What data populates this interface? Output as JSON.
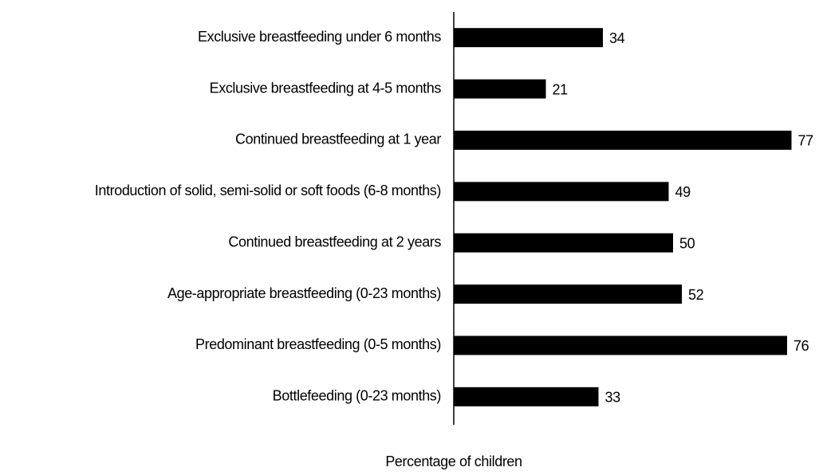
{
  "chart_data": {
    "type": "bar",
    "orientation": "horizontal",
    "categories": [
      "Exclusive breastfeeding under 6 months",
      "Exclusive breastfeeding at 4-5 months",
      "Continued breastfeeding at 1 year",
      "Introduction of solid, semi-solid or soft foods (6-8 months)",
      "Continued breastfeeding at 2 years",
      "Age-appropriate breastfeeding (0-23 months)",
      "Predominant breastfeeding (0-5 months)",
      "Bottlefeeding (0-23 months)"
    ],
    "values": [
      34,
      21,
      77,
      49,
      50,
      52,
      76,
      33
    ],
    "color": "#000000",
    "xlabel": "Percentage of children",
    "xlim": [
      0,
      80
    ],
    "grid": false
  }
}
